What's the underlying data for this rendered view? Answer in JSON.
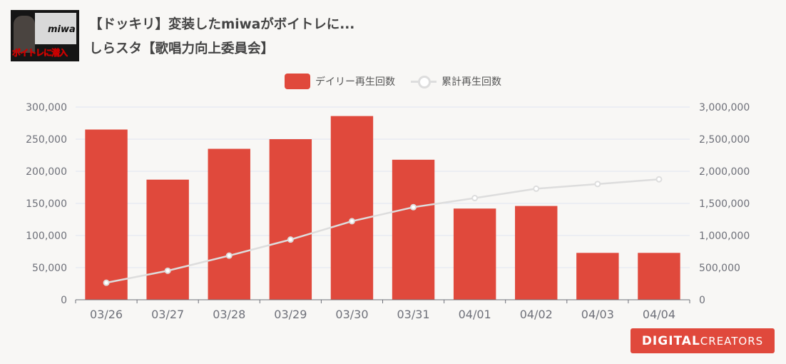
{
  "video": {
    "title_line1": "【ドッキリ】変装したmiwaがボイトレに...",
    "title_line2": "しらスタ【歌唱力向上委員会】",
    "thumbnail_brand": "miwa",
    "thumbnail_caption": "ボイトレに潜入"
  },
  "logo": {
    "part1": "DIGITAL",
    "part2": " CREATORS"
  },
  "colors": {
    "bar": "#e0493c",
    "line": "#dddddd",
    "axis": "#6e7079",
    "grid": "#e0e6f1"
  },
  "chart_data": {
    "type": "bar",
    "categories": [
      "03/26",
      "03/27",
      "03/28",
      "03/29",
      "03/30",
      "03/31",
      "04/01",
      "04/02",
      "04/03",
      "04/04"
    ],
    "series": [
      {
        "name": "デイリー再生回数",
        "type": "bar",
        "axis": "left",
        "values": [
          265000,
          187000,
          235000,
          250000,
          286000,
          218000,
          142000,
          146000,
          73000,
          73000
        ]
      },
      {
        "name": "累計再生回数",
        "type": "line",
        "axis": "right",
        "values": [
          265000,
          452000,
          687000,
          937000,
          1223000,
          1441000,
          1583000,
          1729000,
          1802000,
          1875000
        ]
      }
    ],
    "y_left": {
      "min": 0,
      "max": 300000,
      "ticks": [
        "0",
        "50,000",
        "100,000",
        "150,000",
        "200,000",
        "250,000",
        "300,000"
      ]
    },
    "y_right": {
      "min": 0,
      "max": 3000000,
      "ticks": [
        "0",
        "500,000",
        "1,000,000",
        "1,500,000",
        "2,000,000",
        "2,500,000",
        "3,000,000"
      ]
    },
    "legend_position": "top-center",
    "grid": true
  }
}
